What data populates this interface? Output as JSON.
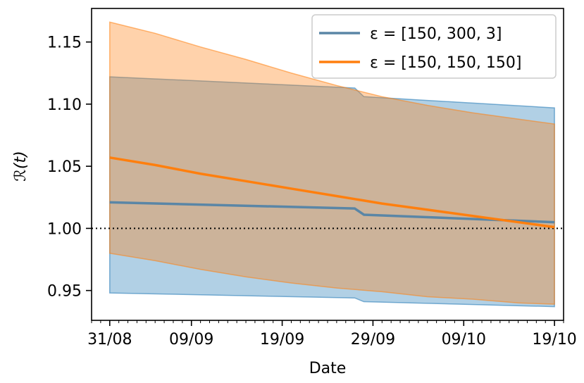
{
  "chart_data": {
    "type": "line",
    "xlabel": "Date",
    "ylabel": "ℛ(t)",
    "x_tick_labels": [
      "31/08",
      "09/09",
      "19/09",
      "29/09",
      "09/10",
      "19/10"
    ],
    "x_tick_dates": [
      "2020-08-31",
      "2020-09-09",
      "2020-09-19",
      "2020-09-29",
      "2020-10-09",
      "2020-10-19"
    ],
    "y_tick_labels": [
      "0.95",
      "1.00",
      "1.05",
      "1.10",
      "1.15"
    ],
    "y_ticks": [
      0.95,
      1.0,
      1.05,
      1.1,
      1.15
    ],
    "xlim": [
      "2020-08-29",
      "2020-10-20"
    ],
    "ylim": [
      0.926,
      1.177
    ],
    "reference_line": {
      "y": 1.0,
      "style": "dotted",
      "color": "#000000"
    },
    "legend_position": "top-right",
    "grid": false,
    "series": [
      {
        "name": "ε = [150, 300, 3]",
        "color": "#5a86a6",
        "band_color": "#1f77b4",
        "x": [
          "2020-08-31",
          "2020-09-27",
          "2020-09-28",
          "2020-10-19"
        ],
        "mean": [
          1.021,
          1.016,
          1.011,
          1.005
        ],
        "lower": [
          0.948,
          0.944,
          0.941,
          0.937
        ],
        "upper": [
          1.122,
          1.113,
          1.106,
          1.097
        ]
      },
      {
        "name": "ε = [150, 150, 150]",
        "color": "#ff7f0e",
        "band_color": "#ff7f0e",
        "x": [
          "2020-08-31",
          "2020-09-05",
          "2020-09-10",
          "2020-09-15",
          "2020-09-20",
          "2020-09-25",
          "2020-09-30",
          "2020-10-05",
          "2020-10-10",
          "2020-10-15",
          "2020-10-19"
        ],
        "mean": [
          1.057,
          1.051,
          1.044,
          1.038,
          1.032,
          1.026,
          1.02,
          1.015,
          1.01,
          1.005,
          1.001
        ],
        "lower": [
          0.98,
          0.974,
          0.967,
          0.961,
          0.956,
          0.952,
          0.949,
          0.945,
          0.943,
          0.94,
          0.939
        ],
        "upper": [
          1.166,
          1.157,
          1.146,
          1.136,
          1.125,
          1.115,
          1.106,
          1.099,
          1.093,
          1.088,
          1.084
        ]
      }
    ]
  }
}
